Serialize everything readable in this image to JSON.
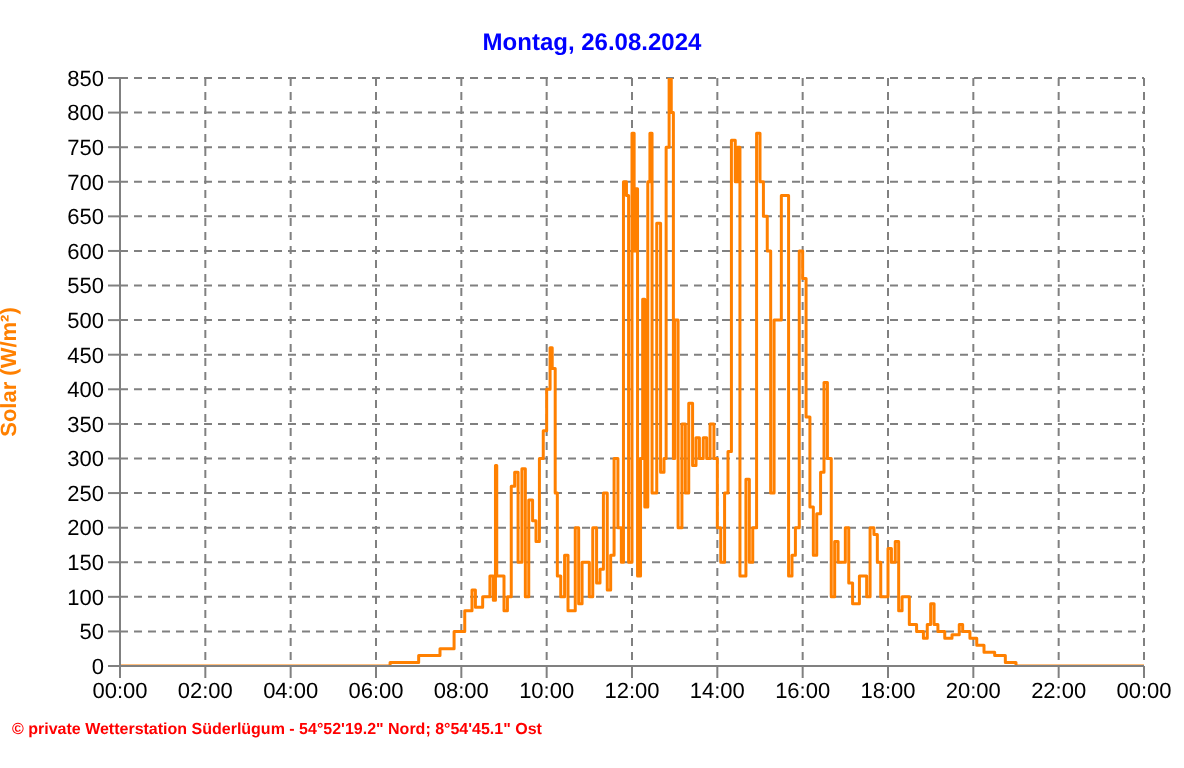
{
  "chart_data": {
    "type": "step",
    "title": "Montag, 26.08.2024",
    "ylabel": "Solar  (W/m²)",
    "annotations": [
      "© private Wetterstation Süderlügum - 54°52'19.2\" Nord; 8°54'45.1\" Ost"
    ],
    "xlim": [
      0,
      24
    ],
    "xticks": [
      {
        "value": 0,
        "label": "00:00"
      },
      {
        "value": 2,
        "label": "02:00"
      },
      {
        "value": 4,
        "label": "04:00"
      },
      {
        "value": 6,
        "label": "06:00"
      },
      {
        "value": 8,
        "label": "08:00"
      },
      {
        "value": 10,
        "label": "10:00"
      },
      {
        "value": 12,
        "label": "12:00"
      },
      {
        "value": 14,
        "label": "14:00"
      },
      {
        "value": 16,
        "label": "16:00"
      },
      {
        "value": 18,
        "label": "18:00"
      },
      {
        "value": 20,
        "label": "20:00"
      },
      {
        "value": 22,
        "label": "22:00"
      },
      {
        "value": 24,
        "label": "00:00"
      }
    ],
    "ylim": [
      0,
      850
    ],
    "yticks": [
      0,
      50,
      100,
      150,
      200,
      250,
      300,
      350,
      400,
      450,
      500,
      550,
      600,
      650,
      700,
      750,
      800,
      850
    ],
    "grid": true,
    "series": [
      {
        "color": "#ff8000",
        "x": [
          0,
          6,
          6.33,
          7,
          7.5,
          7.83,
          8.08,
          8.25,
          8.33,
          8.5,
          8.67,
          8.75,
          8.8,
          8.83,
          9,
          9.08,
          9.17,
          9.25,
          9.33,
          9.42,
          9.5,
          9.58,
          9.67,
          9.75,
          9.83,
          9.92,
          10,
          10.08,
          10.13,
          10.2,
          10.25,
          10.33,
          10.42,
          10.5,
          10.67,
          10.75,
          10.83,
          11,
          11.08,
          11.17,
          11.25,
          11.33,
          11.42,
          11.5,
          11.58,
          11.67,
          11.75,
          11.8,
          11.87,
          11.92,
          12,
          12.05,
          12.08,
          12.13,
          12.2,
          12.25,
          12.3,
          12.37,
          12.42,
          12.47,
          12.58,
          12.67,
          12.75,
          12.8,
          12.87,
          12.92,
          12.97,
          13,
          13.08,
          13.17,
          13.25,
          13.33,
          13.42,
          13.5,
          13.58,
          13.67,
          13.75,
          13.83,
          13.92,
          14,
          14.08,
          14.17,
          14.25,
          14.33,
          14.42,
          14.47,
          14.53,
          14.67,
          14.75,
          14.83,
          14.92,
          15,
          15.08,
          15.17,
          15.25,
          15.33,
          15.42,
          15.5,
          15.58,
          15.67,
          15.75,
          15.83,
          15.92,
          16,
          16.08,
          16.17,
          16.25,
          16.33,
          16.42,
          16.5,
          16.58,
          16.67,
          16.75,
          16.83,
          17,
          17.08,
          17.17,
          17.33,
          17.5,
          17.58,
          17.67,
          17.75,
          17.83,
          18,
          18.08,
          18.17,
          18.25,
          18.33,
          18.42,
          18.5,
          18.67,
          18.83,
          18.92,
          19,
          19.08,
          19.17,
          19.33,
          19.5,
          19.67,
          19.75,
          19.92,
          20.08,
          20.25,
          20.5,
          20.75,
          21,
          24
        ],
        "values": [
          0,
          0,
          5,
          15,
          25,
          50,
          80,
          110,
          85,
          100,
          130,
          95,
          290,
          130,
          80,
          100,
          260,
          280,
          150,
          285,
          100,
          240,
          210,
          180,
          300,
          340,
          400,
          460,
          430,
          250,
          130,
          100,
          160,
          80,
          200,
          90,
          150,
          100,
          200,
          120,
          140,
          250,
          110,
          160,
          300,
          200,
          150,
          700,
          680,
          150,
          770,
          600,
          690,
          130,
          300,
          530,
          230,
          700,
          770,
          250,
          640,
          280,
          300,
          750,
          850,
          800,
          300,
          500,
          200,
          350,
          250,
          380,
          290,
          330,
          300,
          330,
          300,
          350,
          300,
          200,
          150,
          250,
          310,
          760,
          700,
          750,
          130,
          270,
          150,
          200,
          770,
          700,
          650,
          600,
          250,
          500,
          500,
          680,
          680,
          130,
          160,
          200,
          600,
          560,
          360,
          230,
          160,
          220,
          280,
          410,
          300,
          100,
          180,
          150,
          200,
          120,
          90,
          130,
          100,
          200,
          190,
          150,
          100,
          170,
          150,
          180,
          80,
          100,
          100,
          60,
          50,
          40,
          60,
          90,
          60,
          50,
          40,
          45,
          60,
          50,
          40,
          30,
          20,
          15,
          5,
          0,
          0
        ]
      }
    ]
  }
}
